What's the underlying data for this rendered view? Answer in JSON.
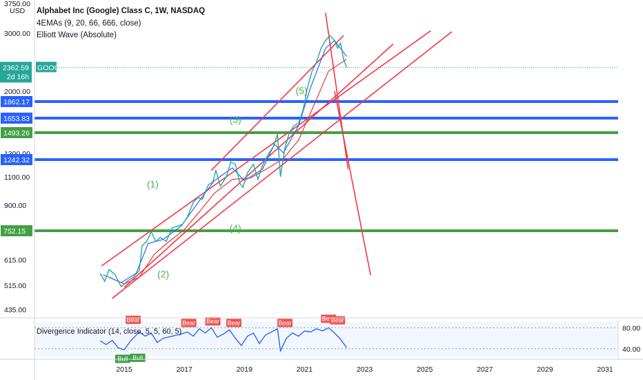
{
  "chart_data": {
    "type": "line",
    "title": "Alphabet Inc (Google) Class C, 1W, NASDAQ",
    "indicators": [
      "4EMAs (9, 20, 66, 666, close)",
      "Elliott Wave (Absolute)"
    ],
    "currency": "USD",
    "y_scale": "log",
    "ylim": [
      400,
      3750
    ],
    "price_ticks": [
      "3750.00",
      "3000.00",
      "2000.00",
      "1300.00",
      "1100.00",
      "900.00",
      "615.00",
      "515.00",
      "435.00"
    ],
    "x_ticks": [
      "2015",
      "2017",
      "2019",
      "2021",
      "2023",
      "2025",
      "2027",
      "2029",
      "2031"
    ],
    "current_price": {
      "value": "2362.59",
      "ticker": "GOOG",
      "countdown": "2d 16h"
    },
    "levels": [
      {
        "value": "1862.17",
        "color": "#2962ff"
      },
      {
        "value": "1653.83",
        "color": "#2962ff"
      },
      {
        "value": "1493.26",
        "color": "#43a047"
      },
      {
        "value": "1242.32",
        "color": "#2962ff"
      },
      {
        "value": "752.15",
        "color": "#43a047"
      }
    ],
    "wave_labels": [
      {
        "text": "(1)",
        "date": 2015.95,
        "price": 1020
      },
      {
        "text": "(2)",
        "date": 2016.3,
        "price": 545
      },
      {
        "text": "(3)",
        "date": 2018.7,
        "price": 1600
      },
      {
        "text": "(4)",
        "date": 2018.7,
        "price": 750
      },
      {
        "text": "(5)",
        "date": 2020.9,
        "price": 1960
      }
    ],
    "price_series": [
      [
        2014.2,
        560
      ],
      [
        2014.35,
        530
      ],
      [
        2014.5,
        575
      ],
      [
        2014.7,
        555
      ],
      [
        2014.9,
        510
      ],
      [
        2015.1,
        530
      ],
      [
        2015.3,
        545
      ],
      [
        2015.5,
        570
      ],
      [
        2015.6,
        680
      ],
      [
        2015.75,
        700
      ],
      [
        2015.9,
        750
      ],
      [
        2016.05,
        700
      ],
      [
        2016.2,
        720
      ],
      [
        2016.4,
        700
      ],
      [
        2016.6,
        770
      ],
      [
        2016.8,
        780
      ],
      [
        2016.95,
        790
      ],
      [
        2017.1,
        830
      ],
      [
        2017.3,
        920
      ],
      [
        2017.45,
        950
      ],
      [
        2017.6,
        940
      ],
      [
        2017.8,
        1040
      ],
      [
        2017.95,
        1060
      ],
      [
        2018.05,
        1150
      ],
      [
        2018.2,
        1030
      ],
      [
        2018.4,
        1100
      ],
      [
        2018.55,
        1220
      ],
      [
        2018.7,
        1200
      ],
      [
        2018.85,
        1050
      ],
      [
        2018.95,
        1020
      ],
      [
        2019.1,
        1130
      ],
      [
        2019.3,
        1200
      ],
      [
        2019.45,
        1080
      ],
      [
        2019.6,
        1190
      ],
      [
        2019.8,
        1290
      ],
      [
        2019.95,
        1350
      ],
      [
        2020.1,
        1480
      ],
      [
        2020.2,
        1100
      ],
      [
        2020.35,
        1350
      ],
      [
        2020.5,
        1500
      ],
      [
        2020.65,
        1570
      ],
      [
        2020.8,
        1600
      ],
      [
        2020.95,
        1750
      ],
      [
        2021.1,
        2050
      ],
      [
        2021.25,
        2300
      ],
      [
        2021.4,
        2450
      ],
      [
        2021.55,
        2700
      ],
      [
        2021.7,
        2850
      ],
      [
        2021.85,
        2950
      ],
      [
        2022.0,
        2850
      ],
      [
        2022.1,
        2700
      ],
      [
        2022.2,
        2800
      ],
      [
        2022.3,
        2500
      ],
      [
        2022.4,
        2362.59
      ]
    ],
    "ema_fast": [
      [
        2014.3,
        555
      ],
      [
        2014.9,
        525
      ],
      [
        2015.4,
        560
      ],
      [
        2015.8,
        690
      ],
      [
        2016.3,
        710
      ],
      [
        2016.9,
        780
      ],
      [
        2017.5,
        930
      ],
      [
        2018.0,
        1070
      ],
      [
        2018.6,
        1170
      ],
      [
        2019.0,
        1070
      ],
      [
        2019.6,
        1160
      ],
      [
        2020.0,
        1380
      ],
      [
        2020.3,
        1300
      ],
      [
        2020.8,
        1570
      ],
      [
        2021.2,
        2050
      ],
      [
        2021.7,
        2700
      ],
      [
        2022.0,
        2850
      ],
      [
        2022.4,
        2550
      ]
    ],
    "ema_slow": [
      [
        2014.5,
        545
      ],
      [
        2015.0,
        520
      ],
      [
        2015.5,
        545
      ],
      [
        2016.0,
        640
      ],
      [
        2016.5,
        700
      ],
      [
        2017.0,
        760
      ],
      [
        2017.5,
        860
      ],
      [
        2018.0,
        980
      ],
      [
        2018.6,
        1080
      ],
      [
        2019.2,
        1090
      ],
      [
        2019.8,
        1170
      ],
      [
        2020.3,
        1250
      ],
      [
        2020.8,
        1420
      ],
      [
        2021.3,
        1800
      ],
      [
        2021.8,
        2300
      ],
      [
        2022.4,
        2500
      ]
    ],
    "trendlines": [
      {
        "from": [
          2014.25,
          590
        ],
        "to": [
          2025.2,
          3050
        ]
      },
      {
        "from": [
          2014.6,
          470
        ],
        "to": [
          2025.9,
          3030
        ]
      },
      {
        "from": [
          2015.0,
          508
        ],
        "to": [
          2023.95,
          2780
        ]
      },
      {
        "from": [
          2017.9,
          1150
        ],
        "to": [
          2022.3,
          2950
        ]
      },
      {
        "from": [
          2021.7,
          3460
        ],
        "to": [
          2022.45,
          1160
        ]
      },
      {
        "from": [
          2022.0,
          2000
        ],
        "to": [
          2023.2,
          553
        ]
      }
    ],
    "divergence_indicator": {
      "label": "Divergence Indicator (14, close, 5, 5, 60, 5)",
      "ylim": [
        20,
        95
      ],
      "y_ticks": [
        "80.00",
        "40.00"
      ],
      "signals": [
        {
          "type": "Bear",
          "date": 2015.3,
          "value": 86
        },
        {
          "type": "Bull",
          "date": 2014.95,
          "value": 30
        },
        {
          "type": "Bull",
          "date": 2015.45,
          "value": 32
        },
        {
          "type": "Bear",
          "date": 2017.15,
          "value": 80
        },
        {
          "type": "Bear",
          "date": 2017.95,
          "value": 83
        },
        {
          "type": "Bear",
          "date": 2018.65,
          "value": 80
        },
        {
          "type": "Bear",
          "date": 2020.35,
          "value": 80
        },
        {
          "type": "Bear",
          "date": 2021.8,
          "value": 88
        },
        {
          "type": "Bear",
          "date": 2022.1,
          "value": 85
        }
      ],
      "series": [
        [
          2014.2,
          55
        ],
        [
          2014.4,
          48
        ],
        [
          2014.6,
          56
        ],
        [
          2014.8,
          42
        ],
        [
          2015.0,
          38
        ],
        [
          2015.2,
          54
        ],
        [
          2015.5,
          72
        ],
        [
          2015.7,
          64
        ],
        [
          2015.9,
          70
        ],
        [
          2016.1,
          52
        ],
        [
          2016.3,
          60
        ],
        [
          2016.6,
          64
        ],
        [
          2016.9,
          68
        ],
        [
          2017.1,
          72
        ],
        [
          2017.3,
          64
        ],
        [
          2017.5,
          78
        ],
        [
          2017.7,
          70
        ],
        [
          2017.9,
          80
        ],
        [
          2018.1,
          62
        ],
        [
          2018.3,
          68
        ],
        [
          2018.5,
          76
        ],
        [
          2018.7,
          60
        ],
        [
          2018.9,
          46
        ],
        [
          2019.1,
          64
        ],
        [
          2019.3,
          70
        ],
        [
          2019.5,
          50
        ],
        [
          2019.7,
          66
        ],
        [
          2019.9,
          72
        ],
        [
          2020.1,
          78
        ],
        [
          2020.2,
          36
        ],
        [
          2020.4,
          60
        ],
        [
          2020.6,
          70
        ],
        [
          2020.8,
          64
        ],
        [
          2021.0,
          74
        ],
        [
          2021.2,
          72
        ],
        [
          2021.4,
          78
        ],
        [
          2021.6,
          74
        ],
        [
          2021.8,
          80
        ],
        [
          2022.0,
          70
        ],
        [
          2022.2,
          58
        ],
        [
          2022.4,
          42
        ]
      ]
    },
    "colors": {
      "price": "#26a69a",
      "ema_fast": "#2962ff",
      "ema_slow": "#e53935",
      "trendline": "#f23645",
      "bear": "#ef5350",
      "bull": "#43a047",
      "osc": "#2962ff"
    }
  }
}
